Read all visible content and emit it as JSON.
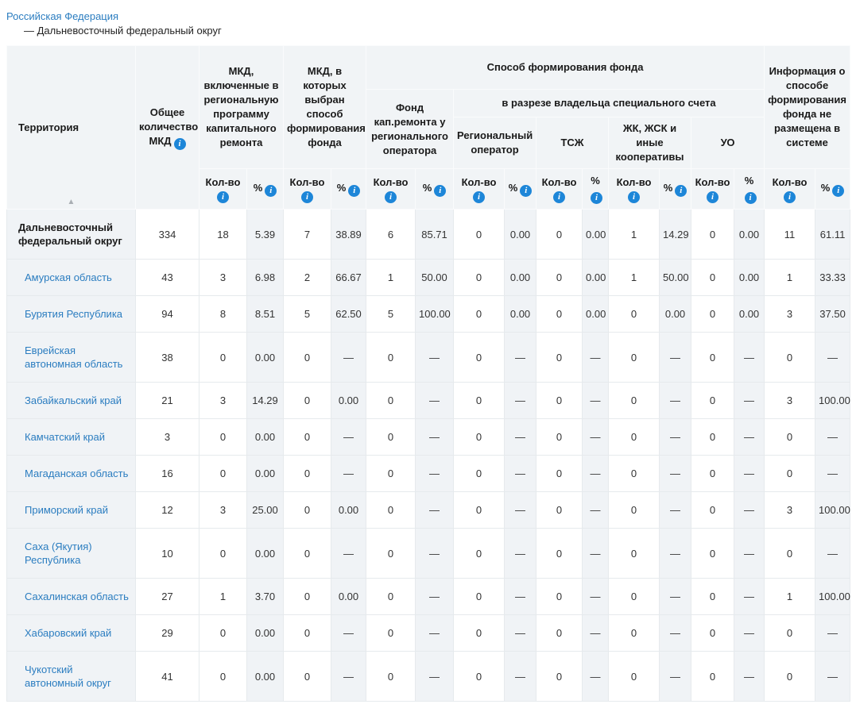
{
  "breadcrumb": {
    "root": "Российская Федерация",
    "current": "— Дальневосточный федеральный округ"
  },
  "icons": {
    "info": "i",
    "sort_asc": "▲"
  },
  "colors": {
    "link_blue": "#2b7dc0",
    "info_icon_blue": "#1d86d8",
    "header_bg": "#f1f4f6",
    "tint_bg": "#f0f3f6",
    "border": "#e6eaed"
  },
  "table": {
    "header": {
      "territory": "Территория",
      "total_mkd": "Общее количество МКД",
      "program": "МКД, включенные в региональную программу капитального ремонта",
      "method_chosen": "МКД, в которых выбран способ формирования фонда",
      "method_group": "Способ формирования фонда",
      "regional_operator_fund": "Фонд кап.ремонта у регионального оператора",
      "special_account_group": "в разрезе владельца специального счета",
      "special_owner_regional_operator": "Региональный оператор",
      "special_owner_tsj": "ТСЖ",
      "special_owner_coop": "ЖК, ЖСК и иные кооперативы",
      "special_owner_uo": "УО",
      "not_in_system": "Информация о способе формирования фонда не размещена в системе",
      "count_label": "Кол-во",
      "percent_label": "%"
    },
    "rows": [
      {
        "name": "Дальневосточный федеральный округ",
        "type": "total",
        "values": [
          "334",
          "18",
          "5.39",
          "7",
          "38.89",
          "6",
          "85.71",
          "0",
          "0.00",
          "0",
          "0.00",
          "1",
          "14.29",
          "0",
          "0.00",
          "11",
          "61.11"
        ]
      },
      {
        "name": "Амурская область",
        "type": "region",
        "values": [
          "43",
          "3",
          "6.98",
          "2",
          "66.67",
          "1",
          "50.00",
          "0",
          "0.00",
          "0",
          "0.00",
          "1",
          "50.00",
          "0",
          "0.00",
          "1",
          "33.33"
        ]
      },
      {
        "name": "Бурятия Республика",
        "type": "region",
        "values": [
          "94",
          "8",
          "8.51",
          "5",
          "62.50",
          "5",
          "100.00",
          "0",
          "0.00",
          "0",
          "0.00",
          "0",
          "0.00",
          "0",
          "0.00",
          "3",
          "37.50"
        ]
      },
      {
        "name": "Еврейская автономная область",
        "type": "region",
        "values": [
          "38",
          "0",
          "0.00",
          "0",
          "—",
          "0",
          "—",
          "0",
          "—",
          "0",
          "—",
          "0",
          "—",
          "0",
          "—",
          "0",
          "—"
        ]
      },
      {
        "name": "Забайкальский край",
        "type": "region",
        "values": [
          "21",
          "3",
          "14.29",
          "0",
          "0.00",
          "0",
          "—",
          "0",
          "—",
          "0",
          "—",
          "0",
          "—",
          "0",
          "—",
          "3",
          "100.00"
        ]
      },
      {
        "name": "Камчатский край",
        "type": "region",
        "values": [
          "3",
          "0",
          "0.00",
          "0",
          "—",
          "0",
          "—",
          "0",
          "—",
          "0",
          "—",
          "0",
          "—",
          "0",
          "—",
          "0",
          "—"
        ]
      },
      {
        "name": "Магаданская область",
        "type": "region",
        "values": [
          "16",
          "0",
          "0.00",
          "0",
          "—",
          "0",
          "—",
          "0",
          "—",
          "0",
          "—",
          "0",
          "—",
          "0",
          "—",
          "0",
          "—"
        ]
      },
      {
        "name": "Приморский край",
        "type": "region",
        "values": [
          "12",
          "3",
          "25.00",
          "0",
          "0.00",
          "0",
          "—",
          "0",
          "—",
          "0",
          "—",
          "0",
          "—",
          "0",
          "—",
          "3",
          "100.00"
        ]
      },
      {
        "name": "Саха (Якутия) Республика",
        "type": "region",
        "values": [
          "10",
          "0",
          "0.00",
          "0",
          "—",
          "0",
          "—",
          "0",
          "—",
          "0",
          "—",
          "0",
          "—",
          "0",
          "—",
          "0",
          "—"
        ]
      },
      {
        "name": "Сахалинская область",
        "type": "region",
        "values": [
          "27",
          "1",
          "3.70",
          "0",
          "0.00",
          "0",
          "—",
          "0",
          "—",
          "0",
          "—",
          "0",
          "—",
          "0",
          "—",
          "1",
          "100.00"
        ]
      },
      {
        "name": "Хабаровский край",
        "type": "region",
        "values": [
          "29",
          "0",
          "0.00",
          "0",
          "—",
          "0",
          "—",
          "0",
          "—",
          "0",
          "—",
          "0",
          "—",
          "0",
          "—",
          "0",
          "—"
        ]
      },
      {
        "name": "Чукотский автономный округ",
        "type": "region",
        "values": [
          "41",
          "0",
          "0.00",
          "0",
          "—",
          "0",
          "—",
          "0",
          "—",
          "0",
          "—",
          "0",
          "—",
          "0",
          "—",
          "0",
          "—"
        ]
      }
    ]
  }
}
